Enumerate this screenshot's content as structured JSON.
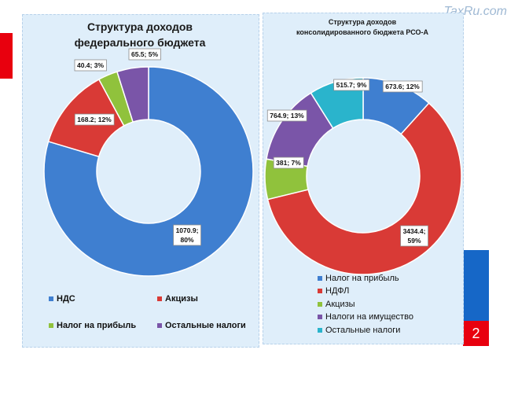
{
  "watermark": "TaxRu.com",
  "slide_number": "2",
  "chart_data": [
    {
      "type": "pie",
      "title_lines": [
        "Структура доходов",
        "федерального бюджета"
      ],
      "slices": [
        {
          "name": "НДС",
          "value": 1070.9,
          "percent": 80,
          "label": "1070.9; 80%",
          "color": "#3f7fd0"
        },
        {
          "name": "Акцизы",
          "value": 168.2,
          "percent": 12,
          "label": "168.2; 12%",
          "color": "#d93a36"
        },
        {
          "name": "Налог на прибыль",
          "value": 40.4,
          "percent": 3,
          "label": "40.4; 3%",
          "color": "#90c23c"
        },
        {
          "name": "Остальные налоги",
          "value": 65.5,
          "percent": 5,
          "label": "65.5; 5%",
          "color": "#7a55a8"
        }
      ]
    },
    {
      "type": "pie",
      "title_lines": [
        "Структура доходов",
        "консолидированного бюджета РСО-А"
      ],
      "slices": [
        {
          "name": "Налог на прибыль",
          "value": 673.6,
          "percent": 12,
          "label": "673.6; 12%",
          "color": "#3f7fd0"
        },
        {
          "name": "НДФЛ",
          "value": 3434.4,
          "percent": 59,
          "label": "3434.4; 59%",
          "color": "#d93a36"
        },
        {
          "name": "Акцизы",
          "value": 381,
          "percent": 7,
          "label": "381; 7%",
          "color": "#90c23c"
        },
        {
          "name": "Налоги на имущество",
          "value": 764.9,
          "percent": 13,
          "label": "764.9; 13%",
          "color": "#7a55a8"
        },
        {
          "name": "Остальные налоги",
          "value": 515.7,
          "percent": 9,
          "label": "515.7; 9%",
          "color": "#2ab4cc"
        }
      ]
    }
  ]
}
